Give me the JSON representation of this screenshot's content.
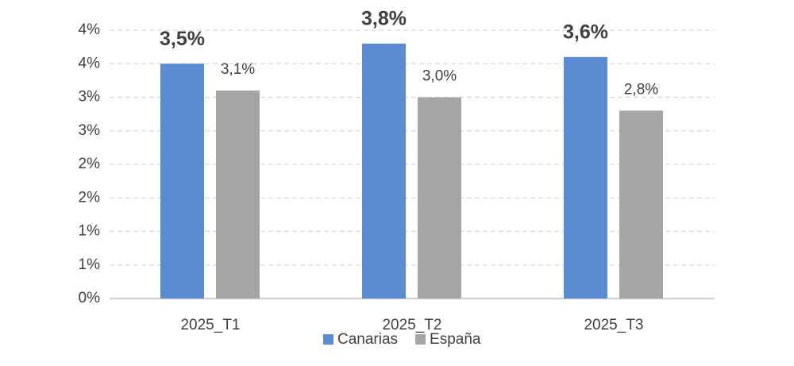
{
  "chart_data": {
    "type": "bar",
    "categories": [
      "2025_T1",
      "2025_T2",
      "2025_T3"
    ],
    "series": [
      {
        "name": "Canarias",
        "color": "#5b8bd0",
        "values": [
          3.5,
          3.8,
          3.6
        ],
        "value_labels": [
          "3,5%",
          "3,8%",
          "3,6%"
        ]
      },
      {
        "name": "España",
        "color": "#a5a5a5",
        "values": [
          3.1,
          3.0,
          2.8
        ],
        "value_labels": [
          "3,1%",
          "3,0%",
          "2,8%"
        ]
      }
    ],
    "ylim": [
      0,
      4
    ],
    "yticks": [
      {
        "value": 0,
        "label": "0%"
      },
      {
        "value": 0.5,
        "label": "1%"
      },
      {
        "value": 1,
        "label": "1%"
      },
      {
        "value": 1.5,
        "label": "2%"
      },
      {
        "value": 2,
        "label": "2%"
      },
      {
        "value": 2.5,
        "label": "3%"
      },
      {
        "value": 3,
        "label": "3%"
      },
      {
        "value": 3.5,
        "label": "4%"
      },
      {
        "value": 4,
        "label": "4%"
      }
    ],
    "grid": true,
    "legend": "bottom"
  }
}
